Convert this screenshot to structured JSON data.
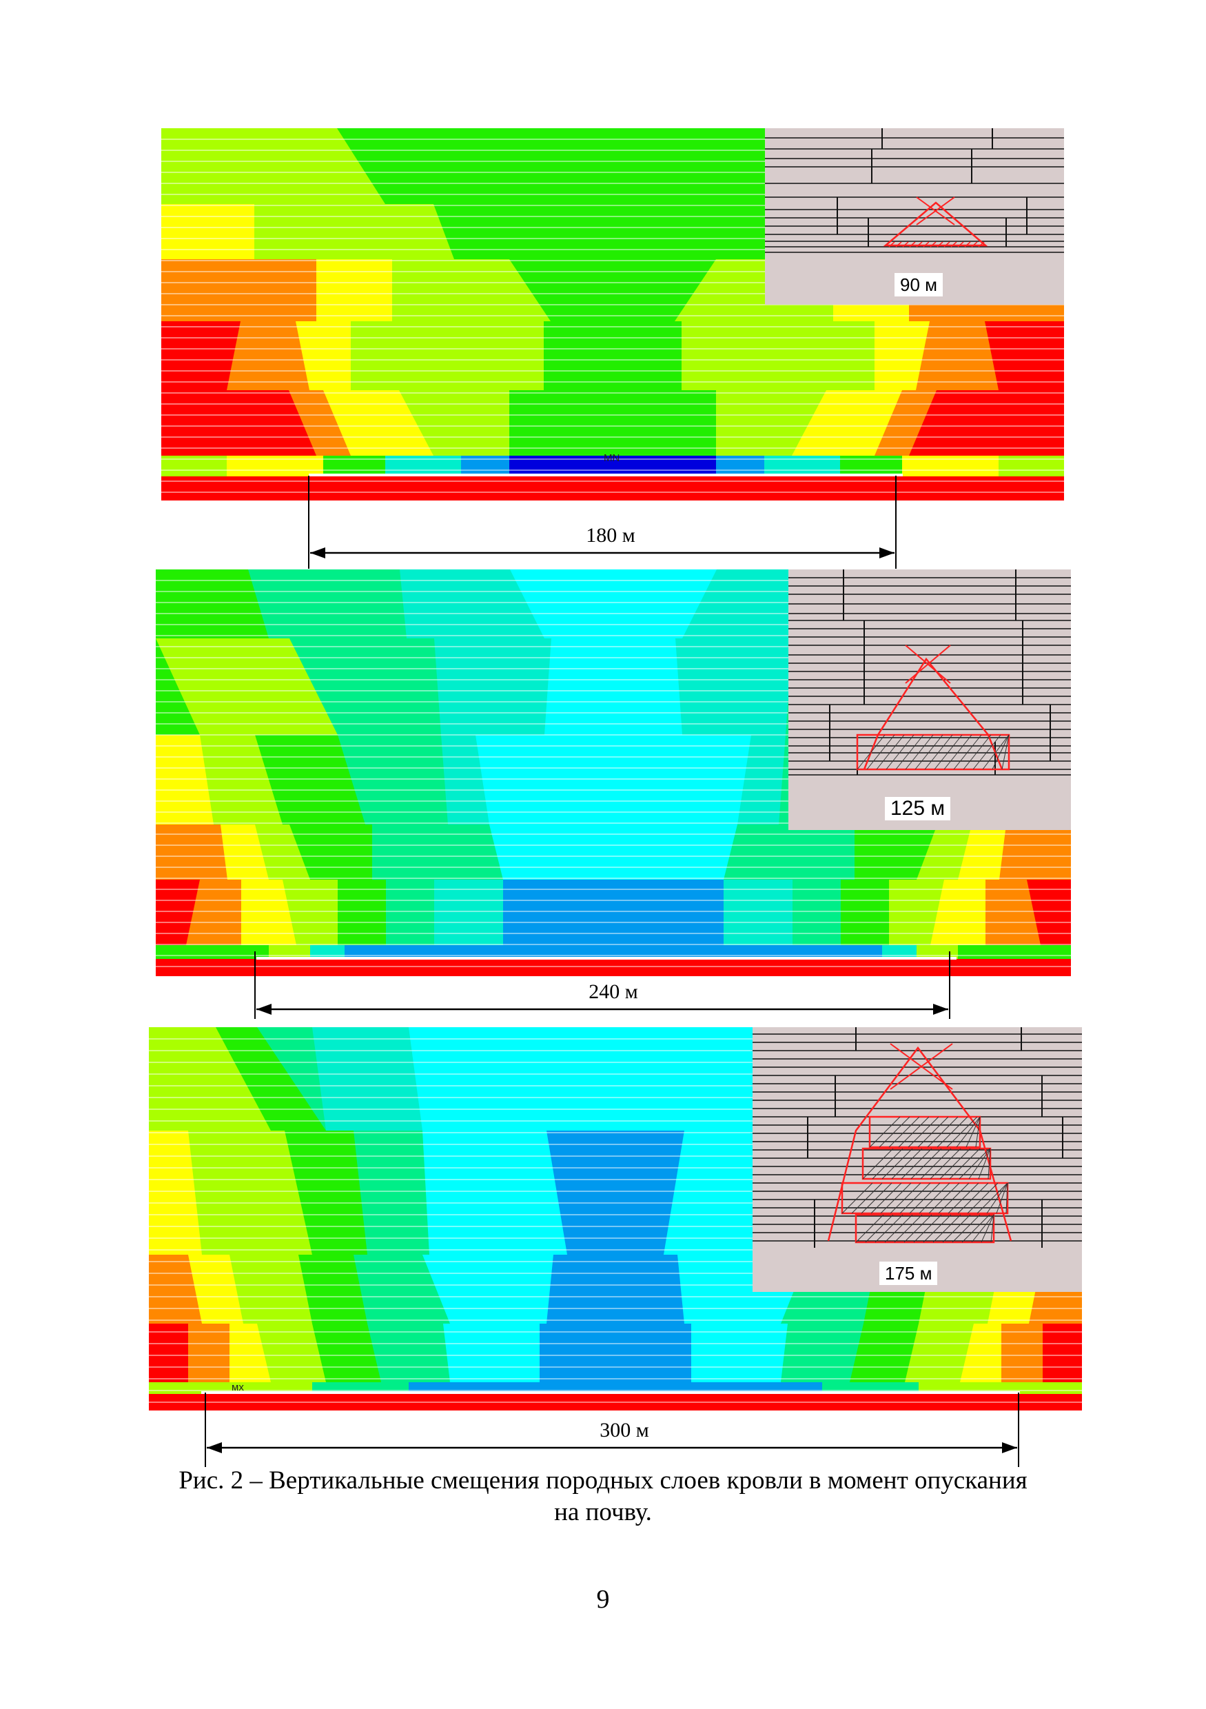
{
  "figures": [
    {
      "inset_label": "90 м",
      "dimension_label": "180 м",
      "marker": "MN",
      "cut_label": "90 м"
    },
    {
      "inset_label": "125 м",
      "dimension_label": "240 м"
    },
    {
      "inset_label": "175 м",
      "dimension_label": "300 м",
      "marker": "мх"
    }
  ],
  "caption": {
    "line1": "Рис. 2 – Вертикальные смещения породных слоев кровли в момент опускания",
    "line2": "на почву."
  },
  "page_number": "9",
  "colors": {
    "red": "#ff0000",
    "orange": "#ff8800",
    "yellow": "#ffff00",
    "yellow_green": "#aaff00",
    "green": "#22ee00",
    "teal_green": "#00ee88",
    "aqua": "#00eecc",
    "cyan": "#00ffff",
    "blue": "#0099ee",
    "dark_blue": "#0000dd",
    "inset_bg": "#d8cccc"
  }
}
